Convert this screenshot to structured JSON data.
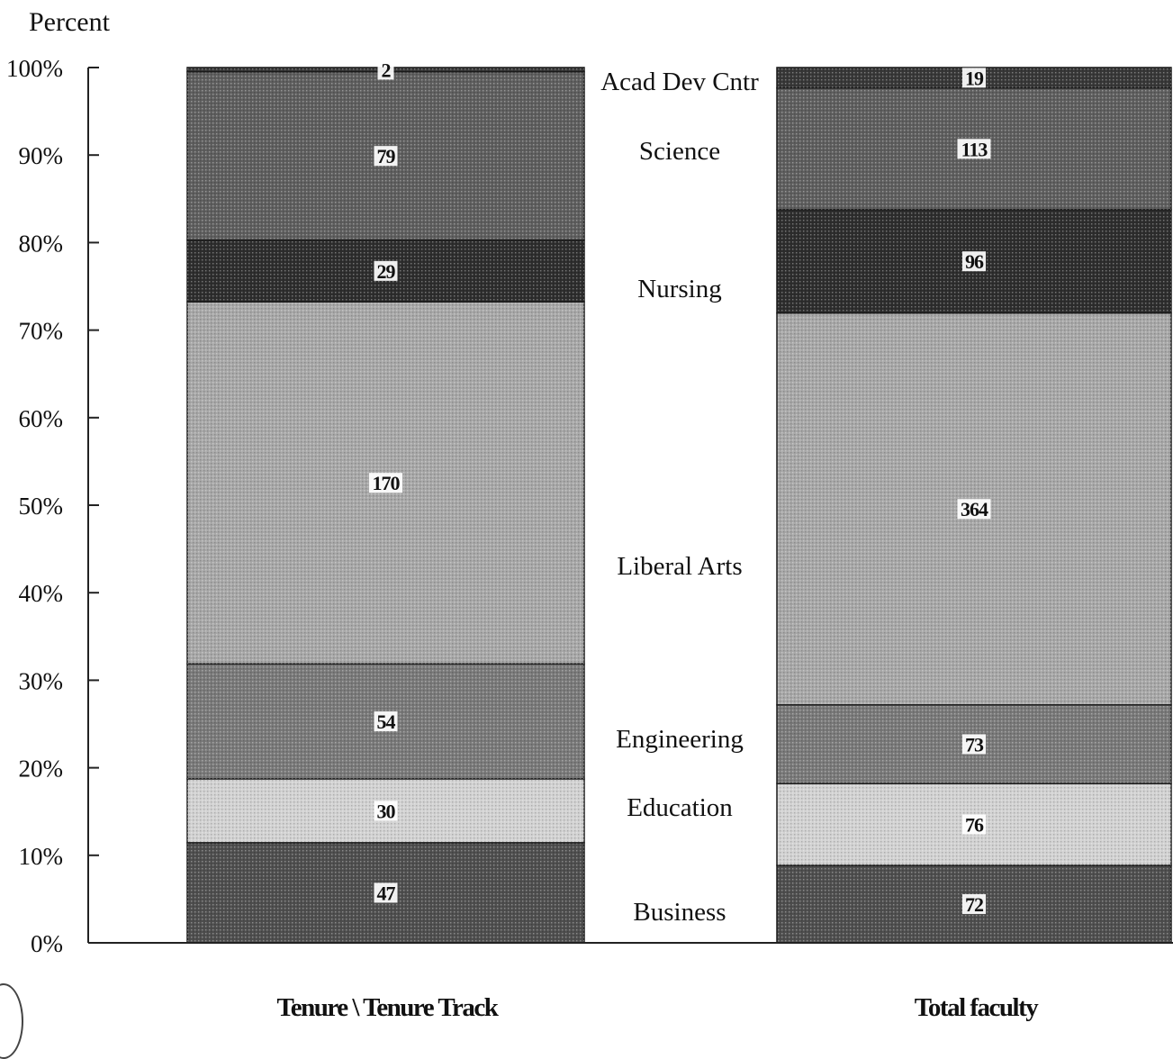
{
  "chart_data": {
    "type": "bar",
    "stacked": true,
    "normalized": true,
    "ylabel": "Percent",
    "y_ticks": [
      "0%",
      "10%",
      "20%",
      "30%",
      "40%",
      "50%",
      "60%",
      "70%",
      "80%",
      "90%",
      "100%"
    ],
    "ylim": [
      0,
      100
    ],
    "categories": [
      "Tenure \\ Tenure Track",
      "Total faculty"
    ],
    "series": [
      {
        "name": "Business",
        "values": [
          47,
          72
        ],
        "color": "#4f4f4f"
      },
      {
        "name": "Education",
        "values": [
          30,
          76
        ],
        "color": "#d2d2d2"
      },
      {
        "name": "Engineering",
        "values": [
          54,
          73
        ],
        "color": "#7a7a7a"
      },
      {
        "name": "Liberal Arts",
        "values": [
          170,
          364
        ],
        "color": "#a8a8a8"
      },
      {
        "name": "Nursing",
        "values": [
          29,
          96
        ],
        "color": "#2e2e2e"
      },
      {
        "name": "Science",
        "values": [
          79,
          113
        ],
        "color": "#5f5f5f"
      },
      {
        "name": "Acad Dev Cntr",
        "values": [
          2,
          19
        ],
        "color": "#383838"
      }
    ],
    "legend_placement": "between-bars",
    "grid": false
  }
}
